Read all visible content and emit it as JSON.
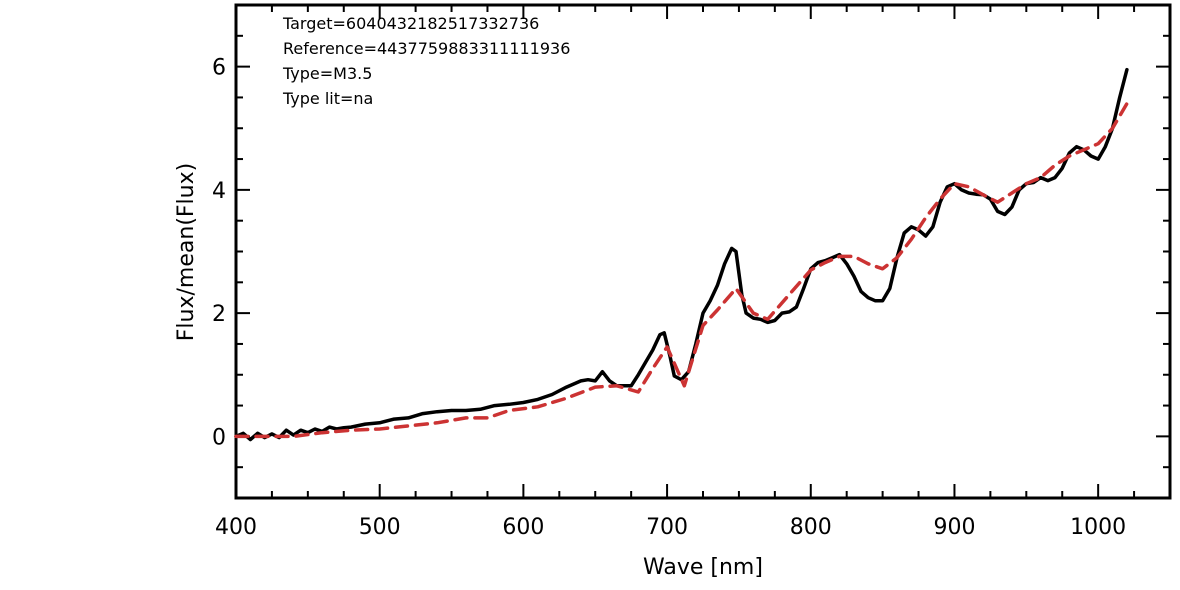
{
  "chart_data": {
    "type": "line",
    "title": "",
    "xlabel": "Wave [nm]",
    "ylabel": "Flux/mean(Flux)",
    "xlim": [
      400,
      1050
    ],
    "ylim": [
      -1,
      7
    ],
    "x_ticks": [
      400,
      500,
      600,
      700,
      800,
      900,
      1000
    ],
    "y_ticks": [
      0,
      2,
      4,
      6
    ],
    "grid": false,
    "annotations": [
      "Target=6040432182517332736",
      "Reference=4437759883311111936",
      "Type=M3.5",
      "Type lit=na"
    ],
    "series": [
      {
        "color": "#000000",
        "style": "solid",
        "x": [
          400,
          405,
          410,
          415,
          420,
          425,
          430,
          435,
          440,
          445,
          450,
          455,
          460,
          465,
          470,
          475,
          480,
          490,
          500,
          510,
          520,
          530,
          540,
          550,
          560,
          570,
          580,
          590,
          600,
          610,
          620,
          630,
          640,
          645,
          650,
          655,
          660,
          665,
          670,
          675,
          680,
          685,
          690,
          695,
          698,
          702,
          705,
          710,
          715,
          720,
          725,
          730,
          735,
          740,
          745,
          748,
          752,
          755,
          760,
          765,
          770,
          775,
          780,
          785,
          790,
          795,
          800,
          805,
          810,
          815,
          820,
          825,
          830,
          835,
          840,
          845,
          850,
          855,
          860,
          865,
          870,
          875,
          880,
          885,
          890,
          895,
          900,
          905,
          910,
          915,
          920,
          925,
          930,
          935,
          940,
          945,
          950,
          955,
          960,
          965,
          970,
          975,
          980,
          985,
          990,
          995,
          1000,
          1005,
          1010,
          1015,
          1020
        ],
        "y": [
          0.0,
          0.05,
          -0.05,
          0.05,
          -0.02,
          0.04,
          -0.02,
          0.1,
          0.02,
          0.1,
          0.06,
          0.12,
          0.08,
          0.15,
          0.12,
          0.14,
          0.15,
          0.2,
          0.22,
          0.28,
          0.3,
          0.37,
          0.4,
          0.42,
          0.42,
          0.44,
          0.5,
          0.52,
          0.55,
          0.6,
          0.68,
          0.8,
          0.9,
          0.92,
          0.9,
          1.05,
          0.9,
          0.82,
          0.82,
          0.82,
          1.0,
          1.2,
          1.4,
          1.65,
          1.68,
          1.3,
          0.98,
          0.92,
          1.05,
          1.5,
          2.0,
          2.2,
          2.45,
          2.8,
          3.05,
          3.0,
          2.3,
          2.0,
          1.92,
          1.9,
          1.85,
          1.88,
          2.0,
          2.02,
          2.1,
          2.4,
          2.72,
          2.82,
          2.85,
          2.9,
          2.95,
          2.8,
          2.6,
          2.35,
          2.25,
          2.2,
          2.2,
          2.4,
          2.9,
          3.3,
          3.4,
          3.35,
          3.25,
          3.4,
          3.8,
          4.05,
          4.1,
          4.0,
          3.95,
          3.93,
          3.92,
          3.85,
          3.65,
          3.6,
          3.72,
          4.0,
          4.1,
          4.12,
          4.2,
          4.15,
          4.2,
          4.35,
          4.6,
          4.7,
          4.65,
          4.55,
          4.5,
          4.7,
          5.0,
          5.5,
          5.95
        ]
      },
      {
        "color": "#cc3333",
        "style": "dashed",
        "x": [
          400,
          420,
          440,
          460,
          480,
          500,
          520,
          540,
          560,
          575,
          590,
          610,
          630,
          650,
          665,
          680,
          690,
          700,
          712,
          725,
          735,
          748,
          760,
          770,
          785,
          800,
          810,
          820,
          830,
          840,
          850,
          860,
          870,
          880,
          890,
          900,
          910,
          920,
          930,
          940,
          950,
          960,
          970,
          980,
          990,
          1000,
          1010,
          1020
        ],
        "y": [
          0.0,
          0.0,
          0.0,
          0.06,
          0.1,
          0.12,
          0.17,
          0.22,
          0.3,
          0.3,
          0.42,
          0.48,
          0.62,
          0.8,
          0.82,
          0.72,
          1.1,
          1.45,
          0.82,
          1.8,
          2.05,
          2.4,
          2.0,
          1.9,
          2.3,
          2.7,
          2.82,
          2.92,
          2.92,
          2.8,
          2.72,
          2.9,
          3.2,
          3.55,
          3.85,
          4.1,
          4.05,
          3.92,
          3.8,
          3.95,
          4.1,
          4.2,
          4.4,
          4.55,
          4.65,
          4.75,
          5.0,
          5.4
        ]
      }
    ]
  }
}
